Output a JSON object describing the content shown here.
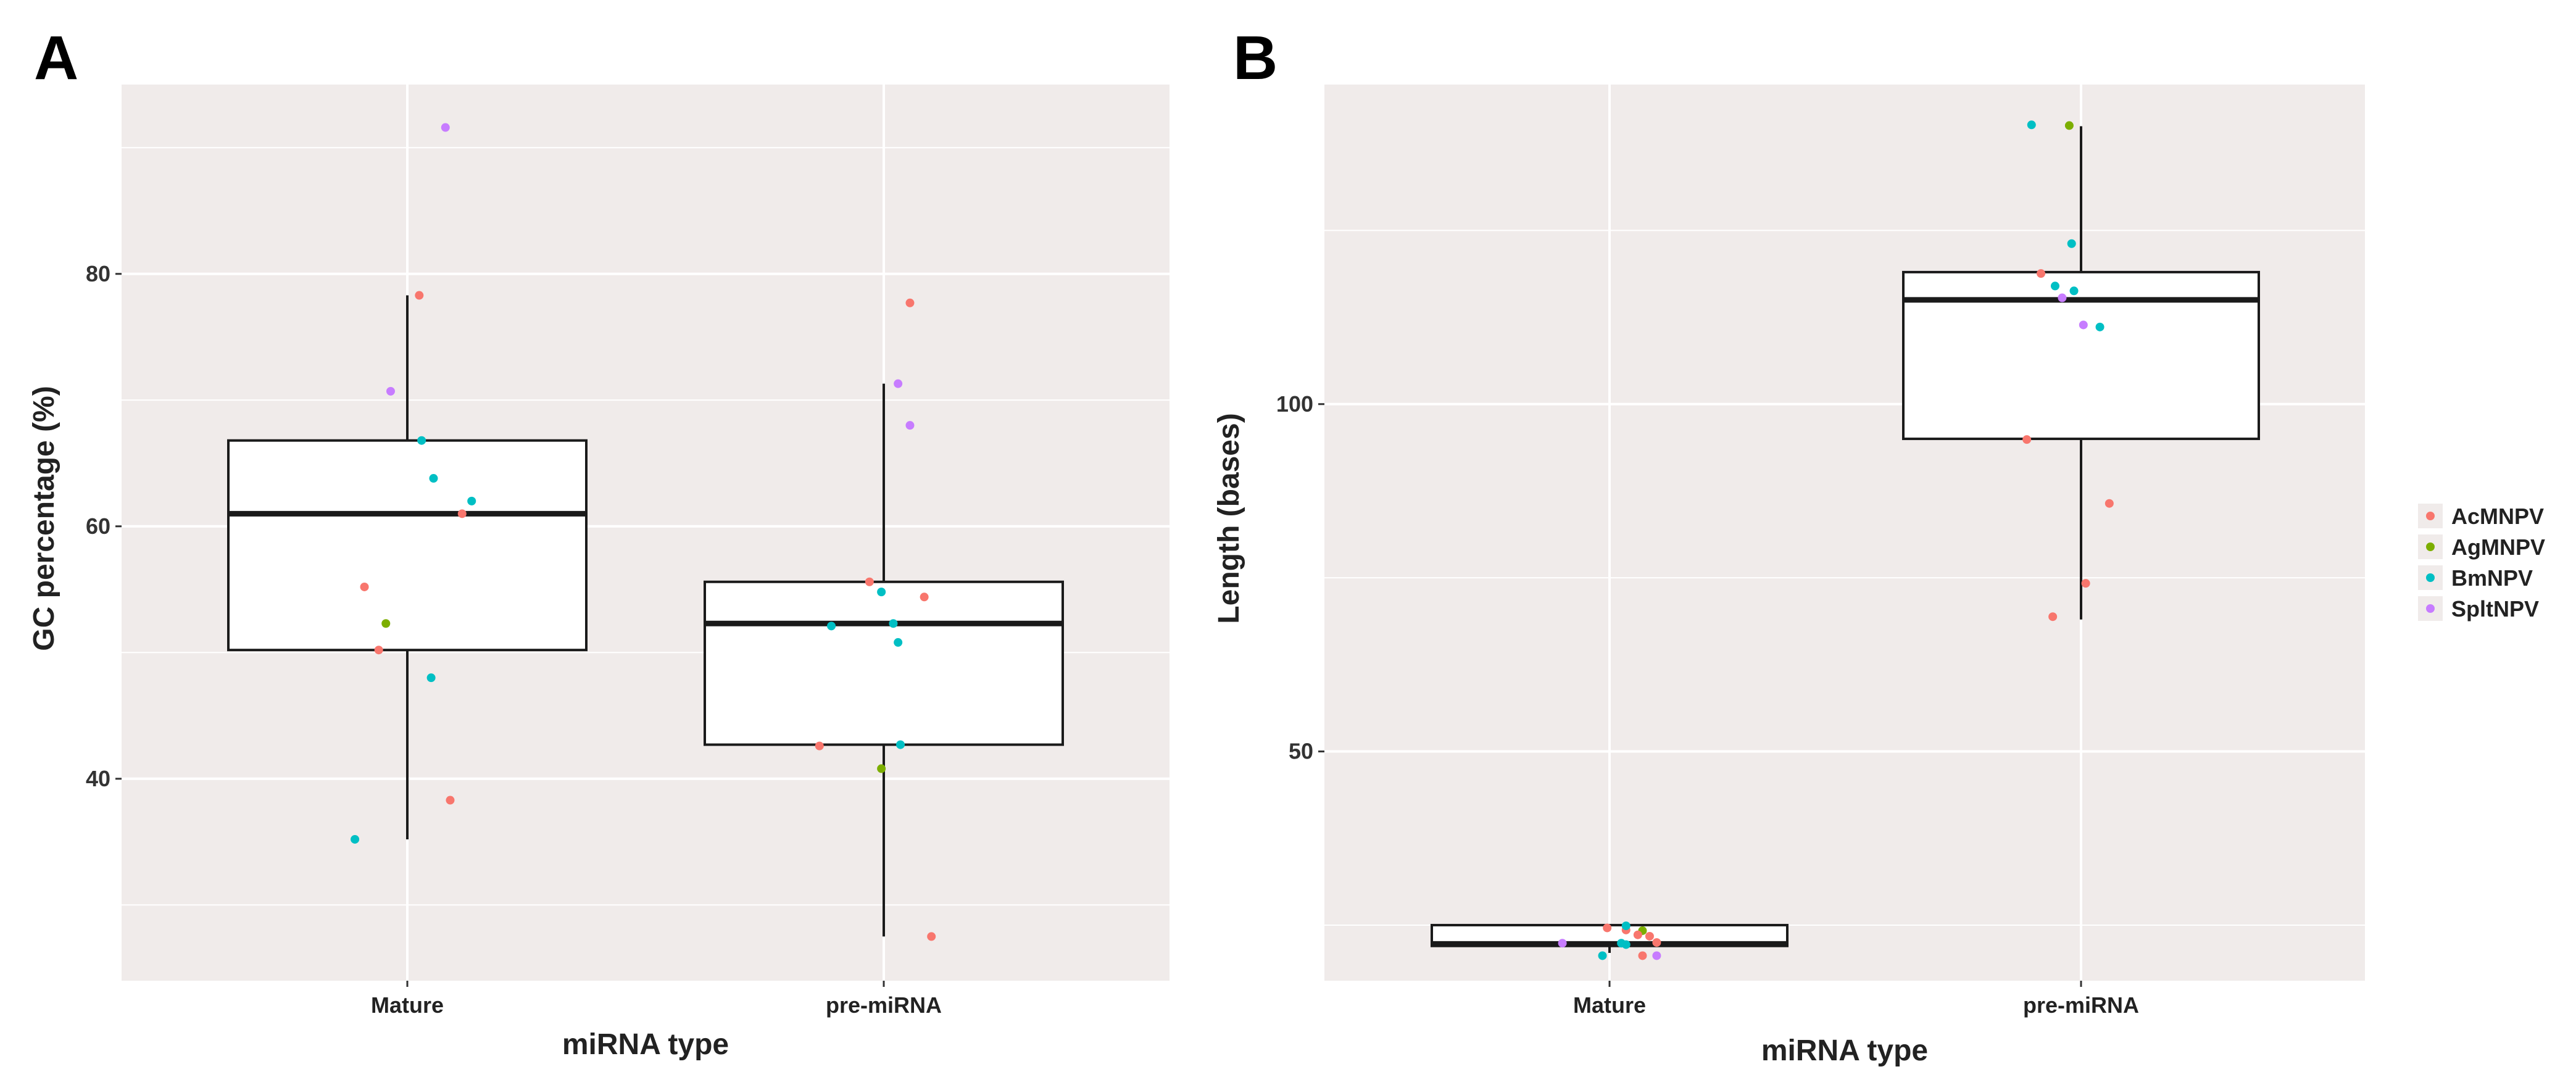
{
  "chart_data": [
    {
      "type": "boxplot",
      "panel": "A",
      "xlabel": "miRNA type",
      "ylabel": "GC percentage  (%)",
      "categories": [
        "Mature",
        "pre-miRNA"
      ],
      "ylim": [
        24,
        95
      ],
      "yticks": [
        40,
        60,
        80
      ],
      "boxes": [
        {
          "category": "Mature",
          "q1": 50.2,
          "median": 61.0,
          "q3": 66.8,
          "whisker_low": 35.2,
          "whisker_high": 78.3
        },
        {
          "category": "pre-miRNA",
          "q1": 42.7,
          "median": 52.3,
          "q3": 55.6,
          "whisker_low": 27.5,
          "whisker_high": 71.3
        }
      ],
      "points": [
        {
          "category": "Mature",
          "series": "SpltNPV",
          "jitter": 0.16,
          "y": 91.6
        },
        {
          "category": "Mature",
          "series": "AcMNPV",
          "jitter": 0.05,
          "y": 78.3
        },
        {
          "category": "Mature",
          "series": "SpltNPV",
          "jitter": -0.07,
          "y": 70.7
        },
        {
          "category": "Mature",
          "series": "BmNPV",
          "jitter": 0.06,
          "y": 66.8
        },
        {
          "category": "Mature",
          "series": "BmNPV",
          "jitter": 0.11,
          "y": 63.8
        },
        {
          "category": "Mature",
          "series": "BmNPV",
          "jitter": 0.27,
          "y": 62.0
        },
        {
          "category": "Mature",
          "series": "AcMNPV",
          "jitter": 0.23,
          "y": 61.0
        },
        {
          "category": "Mature",
          "series": "AcMNPV",
          "jitter": -0.18,
          "y": 55.2
        },
        {
          "category": "Mature",
          "series": "AgMNPV",
          "jitter": -0.09,
          "y": 52.3
        },
        {
          "category": "Mature",
          "series": "AcMNPV",
          "jitter": -0.12,
          "y": 50.2
        },
        {
          "category": "Mature",
          "series": "BmNPV",
          "jitter": 0.1,
          "y": 48.0
        },
        {
          "category": "Mature",
          "series": "AcMNPV",
          "jitter": 0.18,
          "y": 38.3
        },
        {
          "category": "Mature",
          "series": "BmNPV",
          "jitter": -0.22,
          "y": 35.2
        },
        {
          "category": "pre-miRNA",
          "series": "AcMNPV",
          "jitter": 0.11,
          "y": 77.7
        },
        {
          "category": "pre-miRNA",
          "series": "SpltNPV",
          "jitter": 0.06,
          "y": 71.3
        },
        {
          "category": "pre-miRNA",
          "series": "SpltNPV",
          "jitter": 0.11,
          "y": 68.0
        },
        {
          "category": "pre-miRNA",
          "series": "AcMNPV",
          "jitter": -0.06,
          "y": 55.6
        },
        {
          "category": "pre-miRNA",
          "series": "BmNPV",
          "jitter": -0.01,
          "y": 54.8
        },
        {
          "category": "pre-miRNA",
          "series": "AcMNPV",
          "jitter": 0.17,
          "y": 54.4
        },
        {
          "category": "pre-miRNA",
          "series": "BmNPV",
          "jitter": 0.04,
          "y": 52.3
        },
        {
          "category": "pre-miRNA",
          "series": "BmNPV",
          "jitter": -0.22,
          "y": 52.1
        },
        {
          "category": "pre-miRNA",
          "series": "BmNPV",
          "jitter": 0.06,
          "y": 50.8
        },
        {
          "category": "pre-miRNA",
          "series": "AcMNPV",
          "jitter": -0.27,
          "y": 42.6
        },
        {
          "category": "pre-miRNA",
          "series": "BmNPV",
          "jitter": 0.07,
          "y": 42.7
        },
        {
          "category": "pre-miRNA",
          "series": "AgMNPV",
          "jitter": -0.01,
          "y": 40.8
        },
        {
          "category": "pre-miRNA",
          "series": "AcMNPV",
          "jitter": 0.2,
          "y": 27.5
        }
      ]
    },
    {
      "type": "boxplot",
      "panel": "B",
      "xlabel": "miRNA type",
      "ylabel": "Length (bases)",
      "categories": [
        "Mature",
        "pre-miRNA"
      ],
      "ylim": [
        17,
        146
      ],
      "yticks": [
        50,
        100
      ],
      "boxes": [
        {
          "category": "Mature",
          "q1": 22,
          "median": 22.3,
          "q3": 25,
          "whisker_low": 21,
          "whisker_high": 25
        },
        {
          "category": "pre-miRNA",
          "q1": 95,
          "median": 115,
          "q3": 119,
          "whisker_low": 69,
          "whisker_high": 140
        }
      ],
      "points": [
        {
          "category": "Mature",
          "series": "AcMNPV",
          "jitter": -0.01,
          "y": 24.6
        },
        {
          "category": "Mature",
          "series": "AcMNPV",
          "jitter": 0.07,
          "y": 24.3
        },
        {
          "category": "Mature",
          "series": "BmNPV",
          "jitter": 0.07,
          "y": 24.9
        },
        {
          "category": "Mature",
          "series": "AgMNPV",
          "jitter": 0.14,
          "y": 24.2
        },
        {
          "category": "Mature",
          "series": "AcMNPV",
          "jitter": 0.17,
          "y": 23.4
        },
        {
          "category": "Mature",
          "series": "AcMNPV",
          "jitter": 0.2,
          "y": 22.5
        },
        {
          "category": "Mature",
          "series": "AcMNPV",
          "jitter": 0.12,
          "y": 23.6
        },
        {
          "category": "Mature",
          "series": "SpltNPV",
          "jitter": -0.2,
          "y": 22.4
        },
        {
          "category": "Mature",
          "series": "BmNPV",
          "jitter": 0.05,
          "y": 22.4
        },
        {
          "category": "Mature",
          "series": "BmNPV",
          "jitter": 0.07,
          "y": 22.2
        },
        {
          "category": "Mature",
          "series": "BmNPV",
          "jitter": -0.03,
          "y": 20.6
        },
        {
          "category": "Mature",
          "series": "AcMNPV",
          "jitter": 0.14,
          "y": 20.6
        },
        {
          "category": "Mature",
          "series": "SpltNPV",
          "jitter": 0.2,
          "y": 20.6
        },
        {
          "category": "pre-miRNA",
          "series": "BmNPV",
          "jitter": -0.21,
          "y": 140.2
        },
        {
          "category": "pre-miRNA",
          "series": "AgMNPV",
          "jitter": -0.05,
          "y": 140.1
        },
        {
          "category": "pre-miRNA",
          "series": "BmNPV",
          "jitter": -0.04,
          "y": 123.1
        },
        {
          "category": "pre-miRNA",
          "series": "AcMNPV",
          "jitter": -0.17,
          "y": 118.8
        },
        {
          "category": "pre-miRNA",
          "series": "BmNPV",
          "jitter": -0.11,
          "y": 117.0
        },
        {
          "category": "pre-miRNA",
          "series": "BmNPV",
          "jitter": -0.03,
          "y": 116.3
        },
        {
          "category": "pre-miRNA",
          "series": "SpltNPV",
          "jitter": -0.08,
          "y": 115.3
        },
        {
          "category": "pre-miRNA",
          "series": "SpltNPV",
          "jitter": 0.01,
          "y": 111.4
        },
        {
          "category": "pre-miRNA",
          "series": "BmNPV",
          "jitter": 0.08,
          "y": 111.1
        },
        {
          "category": "pre-miRNA",
          "series": "AcMNPV",
          "jitter": -0.23,
          "y": 94.9
        },
        {
          "category": "pre-miRNA",
          "series": "AcMNPV",
          "jitter": 0.12,
          "y": 85.7
        },
        {
          "category": "pre-miRNA",
          "series": "AcMNPV",
          "jitter": 0.02,
          "y": 74.2
        },
        {
          "category": "pre-miRNA",
          "series": "AcMNPV",
          "jitter": -0.12,
          "y": 69.4
        }
      ]
    }
  ],
  "legend": [
    {
      "name": "AcMNPV",
      "color": "#f8766d"
    },
    {
      "name": "AgMNPV",
      "color": "#7cae00"
    },
    {
      "name": "BmNPV",
      "color": "#00bfc4"
    },
    {
      "name": "SpltNPV",
      "color": "#c77cff"
    }
  ]
}
